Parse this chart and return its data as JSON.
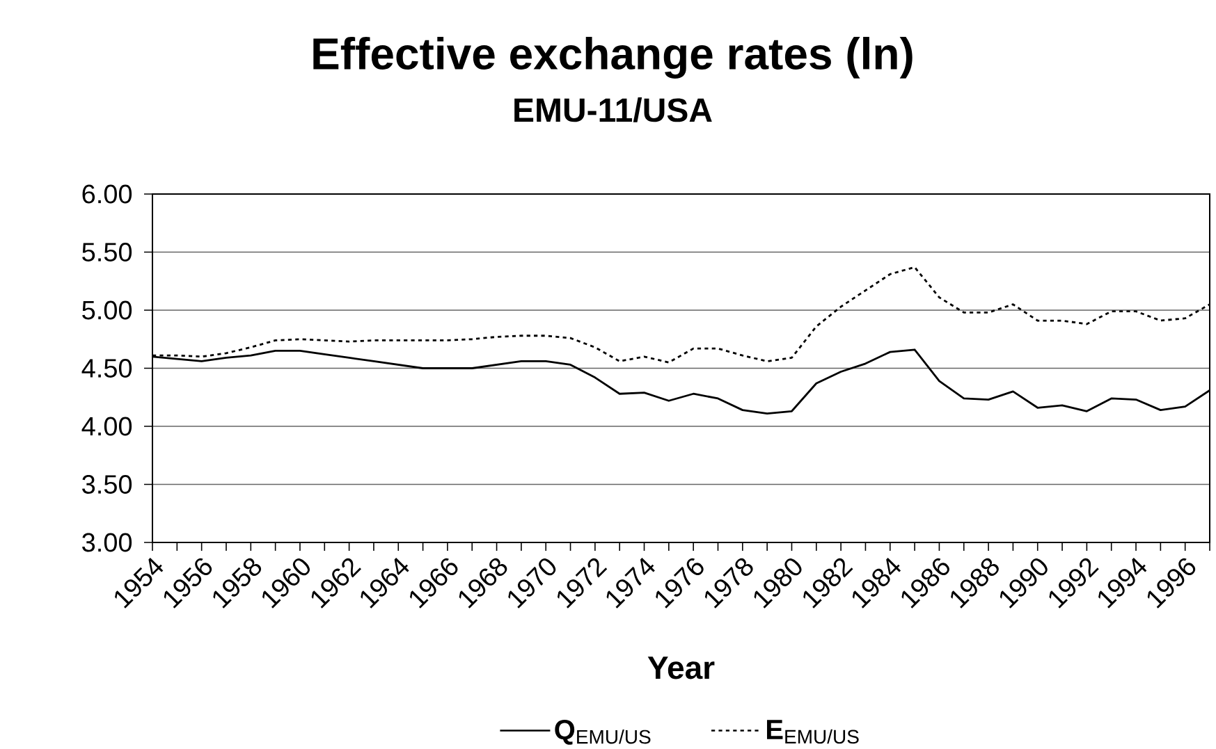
{
  "chart_data": {
    "type": "line",
    "title": "Effective exchange rates (ln)",
    "subtitle": "EMU-11/USA",
    "xlabel": "Year",
    "x": [
      1954,
      1955,
      1956,
      1957,
      1958,
      1959,
      1960,
      1961,
      1962,
      1963,
      1964,
      1965,
      1966,
      1967,
      1968,
      1969,
      1970,
      1971,
      1972,
      1973,
      1974,
      1975,
      1976,
      1977,
      1978,
      1979,
      1980,
      1981,
      1982,
      1983,
      1984,
      1985,
      1986,
      1987,
      1988,
      1989,
      1990,
      1991,
      1992,
      1993,
      1994,
      1995,
      1996,
      1997
    ],
    "series": [
      {
        "name": "**Q**$_{EMU/US}$",
        "color": "#000000",
        "line_style": "solid",
        "values": [
          4.6,
          4.58,
          4.56,
          4.59,
          4.61,
          4.65,
          4.65,
          4.62,
          4.59,
          4.56,
          4.53,
          4.5,
          4.5,
          4.5,
          4.53,
          4.56,
          4.56,
          4.53,
          4.42,
          4.28,
          4.29,
          4.22,
          4.28,
          4.24,
          4.14,
          4.11,
          4.13,
          4.37,
          4.47,
          4.54,
          4.64,
          4.66,
          4.39,
          4.24,
          4.23,
          4.3,
          4.16,
          4.18,
          4.13,
          4.24,
          4.23,
          4.14,
          4.17,
          4.31
        ]
      },
      {
        "name": "**E**$_{EMU/US}$",
        "color": "#000000",
        "line_style": "dotted",
        "values": [
          4.61,
          4.61,
          4.6,
          4.63,
          4.68,
          4.74,
          4.75,
          4.74,
          4.73,
          4.74,
          4.74,
          4.74,
          4.74,
          4.75,
          4.77,
          4.78,
          4.78,
          4.76,
          4.68,
          4.56,
          4.6,
          4.55,
          4.67,
          4.67,
          4.61,
          4.56,
          4.59,
          4.86,
          5.03,
          5.17,
          5.31,
          5.37,
          5.11,
          4.98,
          4.98,
          5.05,
          4.91,
          4.91,
          4.88,
          4.99,
          4.99,
          4.91,
          4.93,
          5.05
        ]
      }
    ],
    "xlim": [
      1954,
      1997
    ],
    "xticks": [
      1954,
      {
        "value": 1955,
        "label": null
      },
      1956,
      {
        "value": 1957,
        "label": null
      },
      1958,
      {
        "value": 1959,
        "label": null
      },
      1960,
      {
        "value": 1961,
        "label": null
      },
      1962,
      {
        "value": 1963,
        "label": null
      },
      1964,
      {
        "value": 1965,
        "label": null
      },
      1966,
      {
        "value": 1967,
        "label": null
      },
      1968,
      {
        "value": 1969,
        "label": null
      },
      1970,
      {
        "value": 1971,
        "label": null
      },
      1972,
      {
        "value": 1973,
        "label": null
      },
      1974,
      {
        "value": 1975,
        "label": null
      },
      1976,
      {
        "value": 1977,
        "label": null
      },
      1978,
      {
        "value": 1979,
        "label": null
      },
      1980,
      {
        "value": 1981,
        "label": null
      },
      1982,
      {
        "value": 1983,
        "label": null
      },
      1984,
      {
        "value": 1985,
        "label": null
      },
      1986,
      {
        "value": 1987,
        "label": null
      },
      1988,
      {
        "value": 1989,
        "label": null
      },
      1990,
      {
        "value": 1991,
        "label": null
      },
      1992,
      {
        "value": 1993,
        "label": null
      },
      1994,
      {
        "value": 1995,
        "label": null
      },
      1996,
      {
        "value": 1997,
        "label": null
      }
    ],
    "ylim": [
      3,
      6
    ],
    "yticks": [
      {
        "value": 3,
        "label": "3.00"
      },
      {
        "value": 3.5,
        "label": "3.50"
      },
      {
        "value": 4,
        "label": "4.00"
      },
      {
        "value": 4.5,
        "label": "4.50"
      },
      {
        "value": 5,
        "label": "5.00"
      },
      {
        "value": 5.5,
        "label": "5.50"
      },
      {
        "value": 6,
        "label": "6.00"
      }
    ],
    "grid": "y",
    "legend": "bottom"
  }
}
